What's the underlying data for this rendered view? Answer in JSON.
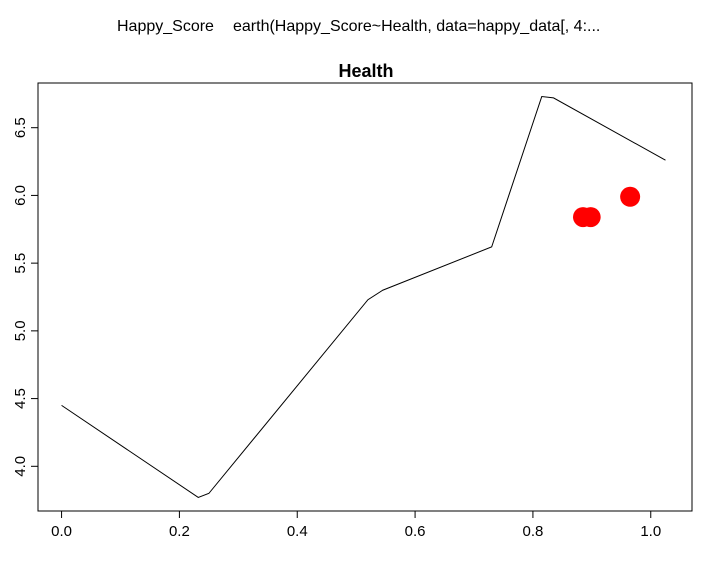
{
  "header": {
    "response_label": "Happy_Score",
    "model_call": "earth(Happy_Score~Health, data=happy_data[, 4:..."
  },
  "chart_data": {
    "type": "line",
    "title": "Health",
    "xlabel": "",
    "ylabel": "",
    "xlim": [
      -0.04,
      1.07
    ],
    "ylim": [
      3.67,
      6.83
    ],
    "x_ticks": [
      0.0,
      0.2,
      0.4,
      0.6,
      0.8,
      1.0
    ],
    "x_tick_labels": [
      "0.0",
      "0.2",
      "0.4",
      "0.6",
      "0.8",
      "1.0"
    ],
    "y_ticks": [
      4.0,
      4.5,
      5.0,
      5.5,
      6.0,
      6.5
    ],
    "y_tick_labels": [
      "4.0",
      "4.5",
      "5.0",
      "5.5",
      "6.0",
      "6.5"
    ],
    "grid": false,
    "series": [
      {
        "style": "line",
        "color": "#000000",
        "x": [
          0.0,
          0.232,
          0.25,
          0.52,
          0.545,
          0.73,
          0.815,
          0.835,
          1.025
        ],
        "y": [
          4.45,
          3.77,
          3.8,
          5.23,
          5.3,
          5.62,
          6.73,
          6.72,
          6.26
        ]
      },
      {
        "style": "points",
        "color": "#ff0000",
        "x": [
          0.885,
          0.898,
          0.965
        ],
        "y": [
          5.84,
          5.84,
          5.99
        ]
      }
    ]
  }
}
